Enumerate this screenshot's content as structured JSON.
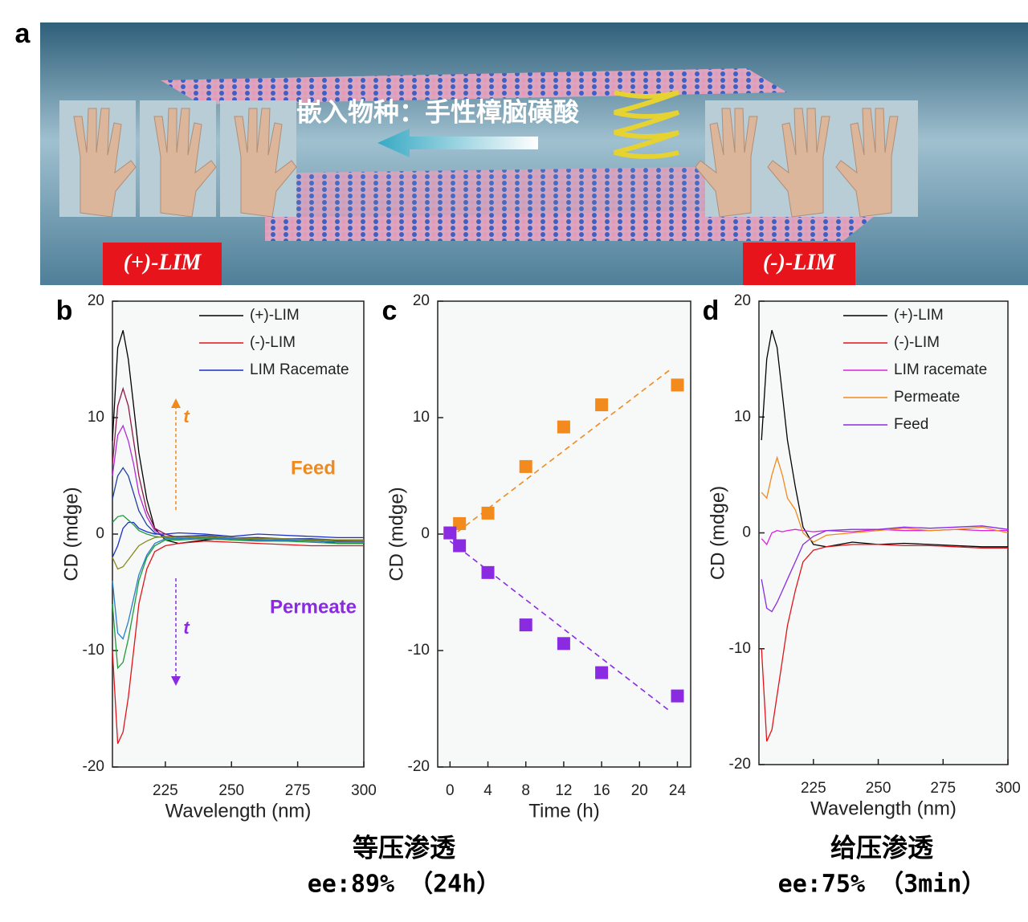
{
  "illustration": {
    "label": "a",
    "caption": "嵌入物种：手性樟脑磺酸",
    "left_tag": "(+)-LIM",
    "right_tag": "(-)-LIM"
  },
  "footers": [
    {
      "title": "等压渗透",
      "subtitle": "ee:89% （24h）"
    },
    {
      "title": "给压渗透",
      "subtitle": "ee:75% （3min）"
    }
  ],
  "chart_data": [
    {
      "type": "line",
      "panel_label": "b",
      "xlabel": "Wavelength (nm)",
      "ylabel": "CD (mdge)",
      "x": [
        205,
        207,
        209,
        211,
        213,
        215,
        218,
        221,
        225,
        230,
        240,
        250,
        260,
        270,
        280,
        290,
        300
      ],
      "xlim": [
        205,
        300
      ],
      "ylim": [
        -20,
        20
      ],
      "xticks": [
        225,
        250,
        275,
        300
      ],
      "yticks": [
        -20,
        -10,
        0,
        10,
        20
      ],
      "legend": "upper right",
      "series": [
        {
          "name": "(+)-LIM",
          "color": "#000000",
          "values": [
            8,
            16,
            17.5,
            15,
            11,
            7,
            3,
            0.5,
            -0.5,
            -0.8,
            -0.5,
            -0.3,
            -0.5,
            -0.6,
            -0.5,
            -0.8,
            -0.8
          ]
        },
        {
          "name": "(-)-LIM",
          "color": "#e0141b",
          "values": [
            -10,
            -18,
            -17,
            -14,
            -10,
            -6,
            -3,
            -1.5,
            -1,
            -0.8,
            -0.6,
            -0.7,
            -0.8,
            -0.9,
            -1,
            -1,
            -1
          ]
        },
        {
          "name": "LIM Racemate",
          "color": "#1a2fc8",
          "values": [
            -2,
            -1,
            0.5,
            1,
            1,
            0.5,
            0.2,
            0,
            0,
            0.1,
            0,
            -0.2,
            0,
            -0.1,
            -0.2,
            -0.3,
            -0.3
          ]
        },
        {
          "color": "#8b1a4a",
          "values": [
            6,
            11,
            12.5,
            11,
            8,
            5,
            2,
            0.5,
            0,
            -0.3,
            -0.2,
            -0.4,
            -0.3,
            -0.5,
            -0.4,
            -0.6,
            -0.6
          ]
        },
        {
          "color": "#b02cd8",
          "values": [
            5,
            8.5,
            9.3,
            8,
            6,
            3.5,
            1.5,
            0.3,
            -0.2,
            -0.3,
            -0.2,
            -0.3,
            -0.4,
            -0.4,
            -0.5,
            -0.5,
            -0.6
          ]
        },
        {
          "color": "#1f3fa0",
          "values": [
            3,
            5,
            5.7,
            5,
            3.5,
            2,
            0.8,
            0.1,
            -0.2,
            -0.2,
            -0.1,
            -0.3,
            -0.3,
            -0.4,
            -0.4,
            -0.5,
            -0.5
          ]
        },
        {
          "color": "#1f9a3a",
          "values": [
            1,
            1.5,
            1.6,
            1.2,
            0.8,
            0.3,
            0,
            -0.2,
            -0.3,
            -0.4,
            -0.3,
            -0.5,
            -0.5,
            -0.6,
            -0.5,
            -0.7,
            -0.7
          ]
        },
        {
          "color": "#1f9a3a",
          "values": [
            -6,
            -11.5,
            -11,
            -9,
            -6.5,
            -4,
            -2,
            -1,
            -0.5,
            -0.5,
            -0.4,
            -0.5,
            -0.6,
            -0.6,
            -0.7,
            -0.8,
            -0.8
          ]
        },
        {
          "color": "#2a7fc8",
          "values": [
            -4,
            -8.5,
            -9,
            -7.5,
            -5.5,
            -3.5,
            -1.8,
            -0.8,
            -0.4,
            -0.4,
            -0.3,
            -0.4,
            -0.5,
            -0.5,
            -0.6,
            -0.7,
            -0.7
          ]
        },
        {
          "color": "#8a8a20",
          "values": [
            -2,
            -3,
            -2.8,
            -2.2,
            -1.6,
            -1,
            -0.6,
            -0.3,
            -0.2,
            -0.3,
            -0.2,
            -0.3,
            -0.4,
            -0.4,
            -0.5,
            -0.5,
            -0.5
          ]
        }
      ],
      "annotations": [
        {
          "text": "t",
          "color": "#f08a1e"
        },
        {
          "text": "Feed",
          "color": "#f08a1e"
        },
        {
          "text": "Permeate",
          "color": "#8a2be2"
        },
        {
          "text": "t",
          "color": "#8a2be2"
        }
      ]
    },
    {
      "type": "scatter",
      "panel_label": "c",
      "xlabel": "Time (h)",
      "ylabel": "CD (mdge)",
      "x": [
        0,
        1,
        4,
        8,
        12,
        16,
        24
      ],
      "xlim": [
        -1.3,
        25.4
      ],
      "ylim": [
        -20,
        20
      ],
      "xticks": [
        0,
        4,
        8,
        12,
        16,
        20,
        24
      ],
      "yticks": [
        -20,
        -10,
        0,
        10,
        20
      ],
      "series": [
        {
          "color": "#f28a1e",
          "values": [
            0.1,
            0.9,
            1.8,
            5.8,
            9.2,
            11.1,
            12.8
          ]
        },
        {
          "color": "#8a2be2",
          "values": [
            0.1,
            -1,
            -3.3,
            -7.8,
            -9.4,
            -11.9,
            -13.9
          ]
        }
      ],
      "fits": [
        {
          "color": "#f28a1e",
          "x": [
            0,
            23.2
          ],
          "values": [
            -0.3,
            14.1
          ]
        },
        {
          "color": "#8a2be2",
          "x": [
            0,
            23.2
          ],
          "values": [
            -0.6,
            -15.2
          ]
        }
      ]
    },
    {
      "type": "line",
      "panel_label": "d",
      "xlabel": "Wavelength (nm)",
      "ylabel": "CD (mdge)",
      "x": [
        205,
        207,
        209,
        211,
        213,
        215,
        218,
        221,
        225,
        230,
        240,
        250,
        260,
        270,
        280,
        290,
        300
      ],
      "xlim": [
        204,
        300
      ],
      "ylim": [
        -20,
        20
      ],
      "xticks": [
        225,
        250,
        275,
        300
      ],
      "yticks": [
        -20,
        -10,
        0,
        10,
        20
      ],
      "legend": "upper right",
      "series": [
        {
          "name": "(+)-LIM",
          "color": "#000000",
          "values": [
            8,
            15,
            17.5,
            16,
            12,
            8,
            4,
            0.5,
            -1,
            -1.2,
            -0.8,
            -1,
            -0.9,
            -1,
            -1.1,
            -1.2,
            -1.2
          ]
        },
        {
          "name": "(-)-LIM",
          "color": "#e0141b",
          "values": [
            -10,
            -18,
            -17,
            -14,
            -11,
            -8,
            -5,
            -2.5,
            -1.5,
            -1.2,
            -1,
            -1,
            -1.1,
            -1.1,
            -1.2,
            -1.3,
            -1.3
          ]
        },
        {
          "name": "LIM racemate",
          "color": "#e020e0",
          "values": [
            -0.5,
            -1,
            0,
            0.2,
            0.1,
            0.2,
            0.3,
            0.2,
            0.1,
            0.2,
            0.1,
            0.3,
            0.2,
            0.2,
            0.3,
            0.2,
            0.2
          ]
        },
        {
          "name": "Permeate",
          "color": "#f28a1e",
          "values": [
            3.5,
            3,
            5,
            6.5,
            5,
            3,
            2,
            0,
            -0.8,
            -0.2,
            0,
            0.2,
            0.4,
            0.2,
            0.3,
            0.5,
            0
          ]
        },
        {
          "name": "Feed",
          "color": "#8a2be2",
          "values": [
            -4,
            -6.5,
            -6.8,
            -6,
            -5,
            -4,
            -2.5,
            -1,
            -0.3,
            0.2,
            0.3,
            0.3,
            0.5,
            0.4,
            0.5,
            0.6,
            0.3
          ]
        }
      ]
    }
  ]
}
